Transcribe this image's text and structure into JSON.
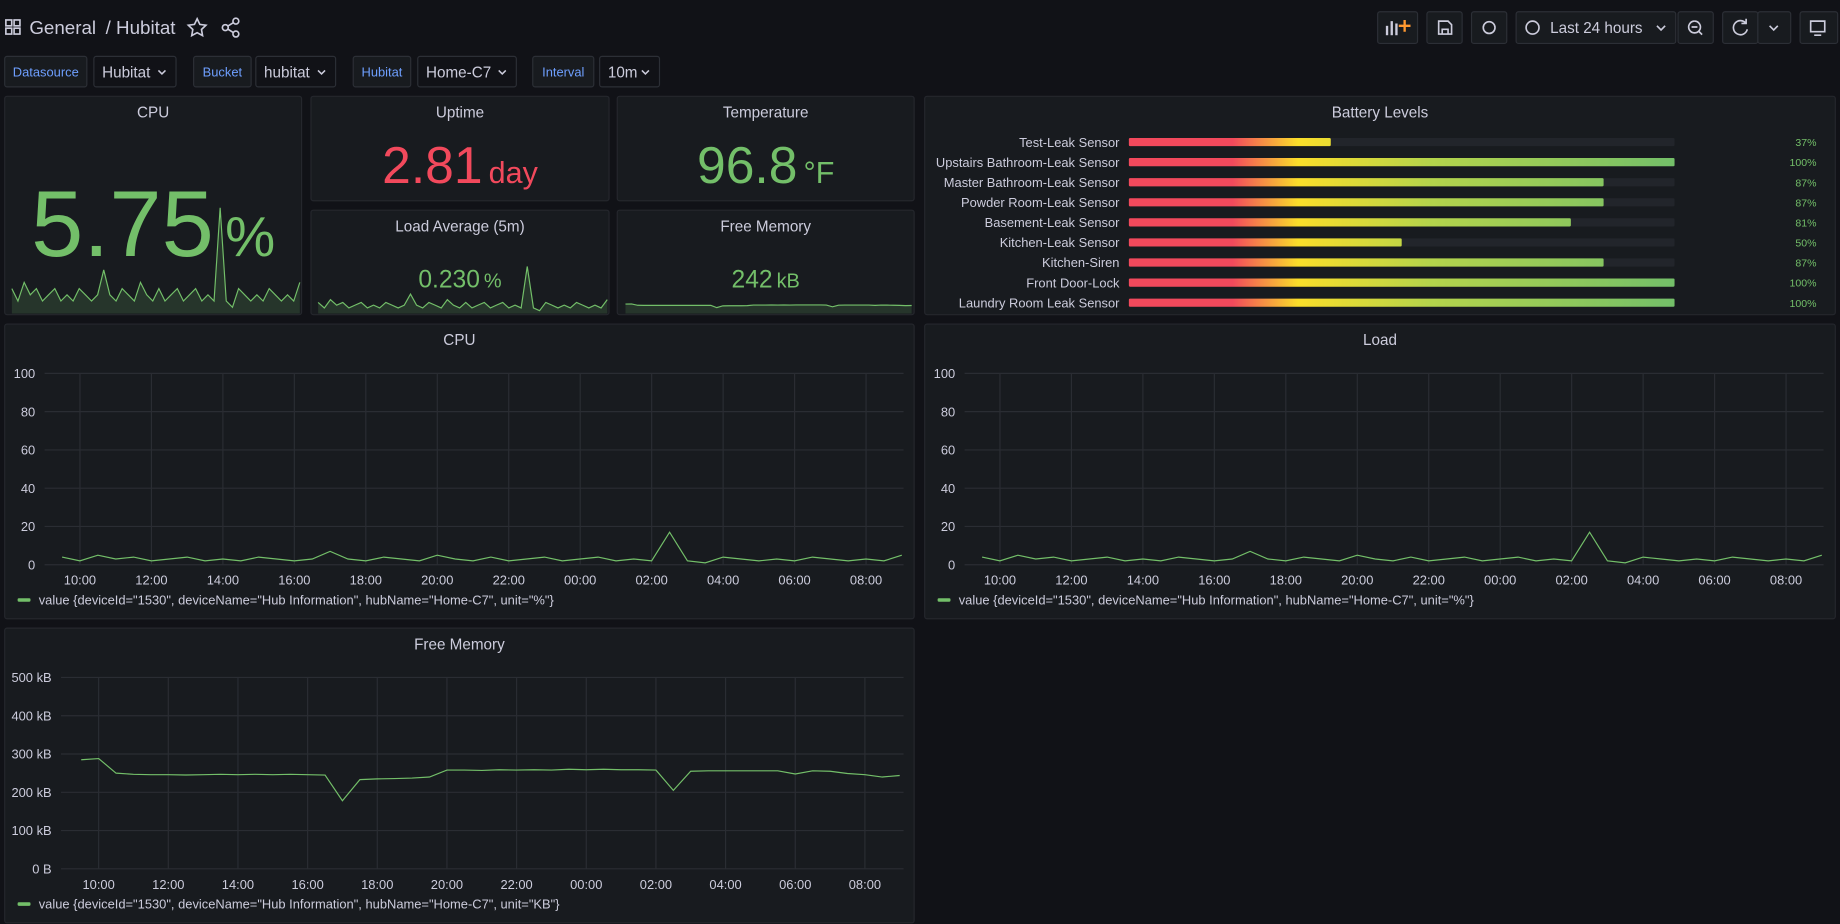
{
  "header": {
    "breadcrumb": "General",
    "title": "/ Hubitat",
    "time_range": "Last 24 hours"
  },
  "variables": [
    {
      "label": "Datasource",
      "value": "Hubitat"
    },
    {
      "label": "Bucket",
      "value": "hubitat"
    },
    {
      "label": "Hubitat",
      "value": "Home-C7"
    },
    {
      "label": "Interval",
      "value": "10m"
    }
  ],
  "stats": [
    {
      "title": "CPU",
      "value": "5.75",
      "unit": "%",
      "color": "#73bf69"
    },
    {
      "title": "Uptime",
      "value": "2.81",
      "unit": "day",
      "color": "#f2495c"
    },
    {
      "title": "Temperature",
      "value": "96.8",
      "unit": "°F",
      "color": "#73bf69"
    },
    {
      "title": "Load Average (5m)",
      "value": "0.230",
      "unit": "%",
      "color": "#73bf69"
    },
    {
      "title": "Free Memory",
      "value": "242",
      "unit": "kB",
      "color": "#73bf69"
    }
  ],
  "battery": {
    "title": "Battery Levels",
    "categories": [
      "Test-Leak Sensor",
      "Upstairs Bathroom-Leak Sensor",
      "Master Bathroom-Leak Sensor",
      "Powder Room-Leak Sensor",
      "Basement-Leak Sensor",
      "Kitchen-Leak Sensor",
      "Kitchen-Siren",
      "Front Door-Lock",
      "Laundry Room Leak Sensor"
    ],
    "values": [
      37,
      100,
      87,
      87,
      81,
      50,
      87,
      100,
      100
    ],
    "value_labels": [
      "37%",
      "100%",
      "87%",
      "87%",
      "81%",
      "50%",
      "87%",
      "100%",
      "100%"
    ],
    "xlim": [
      0,
      100
    ]
  },
  "timeseries": [
    {
      "type": "line",
      "title": "CPU",
      "x": [
        9.5,
        10,
        10.5,
        11,
        11.5,
        12,
        12.5,
        13,
        13.5,
        14,
        14.5,
        15,
        15.5,
        16,
        16.5,
        17,
        17.5,
        18,
        18.5,
        19,
        19.5,
        20,
        20.5,
        21,
        21.5,
        22,
        22.5,
        23,
        23.5,
        24,
        24.5,
        25,
        25.5,
        26,
        26.5,
        27,
        27.5,
        28,
        28.5,
        29,
        29.5,
        30,
        30.5,
        31,
        31.5,
        32,
        32.5,
        33
      ],
      "series": [
        {
          "name": "value {deviceId=\"1530\", deviceName=\"Hub Information\", hubName=\"Home-C7\", unit=\"%\"}",
          "color": "#73bf69",
          "values": [
            4,
            2,
            5,
            3,
            4,
            2,
            3,
            4,
            2,
            3,
            2,
            4,
            3,
            2,
            3,
            7,
            3,
            2,
            4,
            3,
            2,
            5,
            3,
            2,
            4,
            2,
            3,
            4,
            2,
            3,
            4,
            2,
            3,
            2,
            17,
            2,
            1,
            4,
            3,
            2,
            3,
            2,
            4,
            3,
            2,
            3,
            2,
            5
          ]
        }
      ],
      "xlim": [
        9.01,
        33.05
      ],
      "ylim": [
        0,
        100
      ],
      "yticks": [
        0,
        20,
        40,
        60,
        80,
        100
      ],
      "xticks": [
        {
          "value": 10,
          "label": "10:00"
        },
        {
          "value": 12,
          "label": "12:00"
        },
        {
          "value": 14,
          "label": "14:00"
        },
        {
          "value": 16,
          "label": "16:00"
        },
        {
          "value": 18,
          "label": "18:00"
        },
        {
          "value": 20,
          "label": "20:00"
        },
        {
          "value": 22,
          "label": "22:00"
        },
        {
          "value": 24,
          "label": "00:00"
        },
        {
          "value": 26,
          "label": "02:00"
        },
        {
          "value": 28,
          "label": "04:00"
        },
        {
          "value": 30,
          "label": "06:00"
        },
        {
          "value": 32,
          "label": "08:00"
        }
      ],
      "grid": true
    },
    {
      "type": "line",
      "title": "Load",
      "x": [
        9.5,
        10,
        10.5,
        11,
        11.5,
        12,
        12.5,
        13,
        13.5,
        14,
        14.5,
        15,
        15.5,
        16,
        16.5,
        17,
        17.5,
        18,
        18.5,
        19,
        19.5,
        20,
        20.5,
        21,
        21.5,
        22,
        22.5,
        23,
        23.5,
        24,
        24.5,
        25,
        25.5,
        26,
        26.5,
        27,
        27.5,
        28,
        28.5,
        29,
        29.5,
        30,
        30.5,
        31,
        31.5,
        32,
        32.5,
        33
      ],
      "series": [
        {
          "name": "value {deviceId=\"1530\", deviceName=\"Hub Information\", hubName=\"Home-C7\", unit=\"%\"}",
          "color": "#73bf69",
          "values": [
            4,
            2,
            5,
            3,
            4,
            2,
            3,
            4,
            2,
            3,
            2,
            4,
            3,
            2,
            3,
            7,
            3,
            2,
            4,
            3,
            2,
            5,
            3,
            2,
            4,
            2,
            3,
            4,
            2,
            3,
            4,
            2,
            3,
            2,
            17,
            2,
            1,
            4,
            3,
            2,
            3,
            2,
            4,
            3,
            2,
            3,
            2,
            5
          ]
        }
      ],
      "xlim": [
        9.01,
        33.05
      ],
      "ylim": [
        0,
        100
      ],
      "yticks": [
        0,
        20,
        40,
        60,
        80,
        100
      ],
      "xticks": [
        {
          "value": 10,
          "label": "10:00"
        },
        {
          "value": 12,
          "label": "12:00"
        },
        {
          "value": 14,
          "label": "14:00"
        },
        {
          "value": 16,
          "label": "16:00"
        },
        {
          "value": 18,
          "label": "18:00"
        },
        {
          "value": 20,
          "label": "20:00"
        },
        {
          "value": 22,
          "label": "22:00"
        },
        {
          "value": 24,
          "label": "00:00"
        },
        {
          "value": 26,
          "label": "02:00"
        },
        {
          "value": 28,
          "label": "04:00"
        },
        {
          "value": 30,
          "label": "06:00"
        },
        {
          "value": 32,
          "label": "08:00"
        }
      ],
      "grid": true
    },
    {
      "type": "line",
      "title": "Free Memory",
      "x": [
        9.5,
        10,
        10.5,
        11,
        11.5,
        12,
        12.5,
        13,
        13.5,
        14,
        14.5,
        15,
        15.5,
        16,
        16.5,
        17,
        17.5,
        18,
        18.5,
        19,
        19.5,
        20,
        20.5,
        21,
        21.5,
        22,
        22.5,
        23,
        23.5,
        24,
        24.5,
        25,
        25.5,
        26,
        26.5,
        27,
        27.5,
        28,
        28.5,
        29,
        29.5,
        30,
        30.5,
        31,
        31.5,
        32,
        32.5,
        33
      ],
      "series": [
        {
          "name": "value {deviceId=\"1530\", deviceName=\"Hub Information\", hubName=\"Home-C7\", unit=\"KB\"}",
          "color": "#73bf69",
          "values": [
            285,
            288,
            250,
            247,
            246,
            246,
            245,
            246,
            247,
            246,
            247,
            246,
            247,
            246,
            245,
            178,
            233,
            235,
            236,
            237,
            240,
            258,
            258,
            257,
            259,
            258,
            259,
            258,
            260,
            259,
            260,
            259,
            259,
            258,
            205,
            255,
            256,
            256,
            256,
            256,
            256,
            248,
            256,
            255,
            249,
            246,
            240,
            244
          ]
        }
      ],
      "xlim": [
        8.92,
        33.11
      ],
      "ylim": [
        0,
        500
      ],
      "yticks": [
        {
          "value": 0,
          "label": "0 B"
        },
        {
          "value": 100,
          "label": "100 kB"
        },
        {
          "value": 200,
          "label": "200 kB"
        },
        {
          "value": 300,
          "label": "300 kB"
        },
        {
          "value": 400,
          "label": "400 kB"
        },
        {
          "value": 500,
          "label": "500 kB"
        }
      ],
      "xticks": [
        {
          "value": 10,
          "label": "10:00"
        },
        {
          "value": 12,
          "label": "12:00"
        },
        {
          "value": 14,
          "label": "14:00"
        },
        {
          "value": 16,
          "label": "16:00"
        },
        {
          "value": 18,
          "label": "18:00"
        },
        {
          "value": 20,
          "label": "20:00"
        },
        {
          "value": 22,
          "label": "22:00"
        },
        {
          "value": 24,
          "label": "00:00"
        },
        {
          "value": 26,
          "label": "02:00"
        },
        {
          "value": 28,
          "label": "04:00"
        },
        {
          "value": 30,
          "label": "06:00"
        },
        {
          "value": 32,
          "label": "08:00"
        }
      ],
      "grid": true
    }
  ]
}
